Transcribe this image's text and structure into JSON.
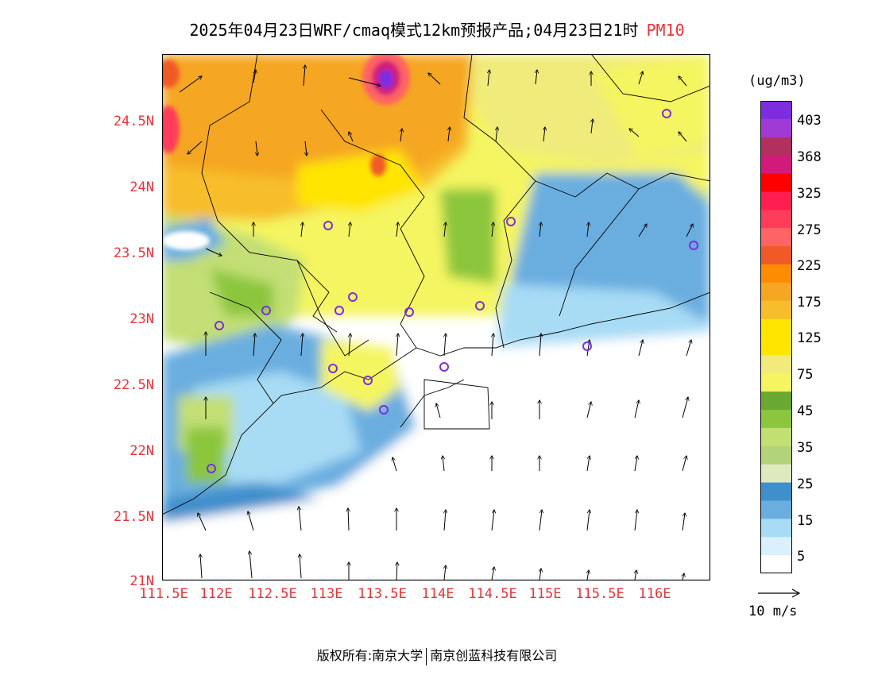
{
  "title": {
    "text": "2025年04月23日WRF/cmaq模式12km预报产品;04月23日21时",
    "variable": "PM10"
  },
  "axes": {
    "y_ticks": [
      "24.5N",
      "24N",
      "23.5N",
      "23N",
      "22.5N",
      "22N",
      "21.5N",
      "21N"
    ],
    "x_ticks": [
      "111.5E",
      "112E",
      "112.5E",
      "113E",
      "113.5E",
      "114E",
      "114.5E",
      "115E",
      "115.5E",
      "116E"
    ],
    "lat_range": [
      21,
      25
    ],
    "lon_range": [
      111.5,
      116.7
    ]
  },
  "colorbar": {
    "unit": "(ug/m3)",
    "labels": [
      "403",
      "368",
      "325",
      "275",
      "225",
      "175",
      "125",
      "75",
      "45",
      "35",
      "25",
      "15",
      "5"
    ],
    "colors": [
      "#7d2de0",
      "#a03ad6",
      "#b03060",
      "#d21a7a",
      "#ff0000",
      "#ff1e50",
      "#ff3c5a",
      "#ff6464",
      "#f05a28",
      "#ff8c00",
      "#f5a623",
      "#f7bd2b",
      "#ffe500",
      "#ffe600",
      "#f0eb7a",
      "#f4f560",
      "#6aa832",
      "#8cc63e",
      "#c3df74",
      "#b2d378",
      "#dfe9c0",
      "#3f8fcc",
      "#6aaee0",
      "#a8dcf5",
      "#daf0fb",
      "#ffffff"
    ]
  },
  "wind_key": {
    "label": "10 m/s"
  },
  "footer": {
    "left": "版权所有:南京大学",
    "right": "南京创蓝科技有限公司"
  },
  "colors": {
    "label_red": "#e8333a"
  }
}
